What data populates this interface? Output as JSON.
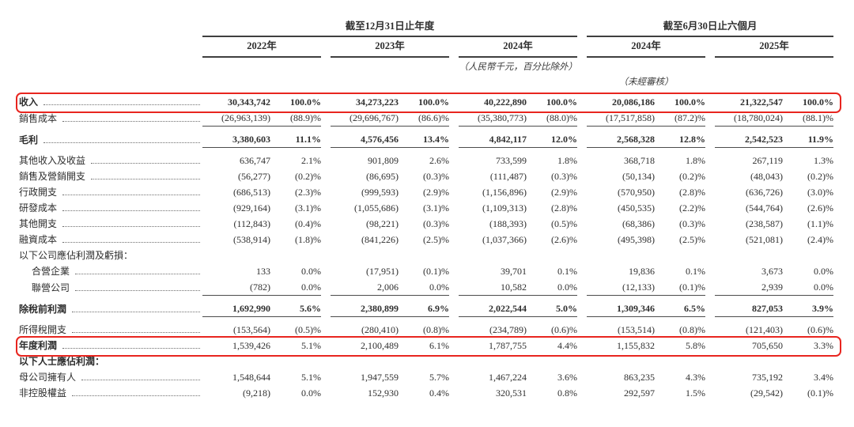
{
  "document": {
    "unit_note": "（人民幣千元，百分比除外）",
    "unaudited_note": "（未經審核）"
  },
  "colors": {
    "highlight_box": "#e8251f",
    "rule_line": "#3f3f3f"
  },
  "table": {
    "group_headers": [
      {
        "label": "截至12月31日止年度"
      },
      {
        "label": "截至6月30日止六個月"
      }
    ],
    "year_headers": [
      "2022年",
      "2023年",
      "2024年",
      "2024年",
      "2025年"
    ],
    "rows": [
      {
        "label": "收入",
        "leader": true,
        "bold": true,
        "value_bold": true,
        "indent": false,
        "highlight": true,
        "gap_above": false,
        "rule_below": false,
        "cells": [
          "30,343,742",
          "100.0%",
          "34,273,223",
          "100.0%",
          "40,222,890",
          "100.0%",
          "20,086,186",
          "100.0%",
          "21,322,547",
          "100.0%"
        ]
      },
      {
        "label": "銷售成本",
        "leader": true,
        "bold": false,
        "value_bold": false,
        "indent": false,
        "highlight": false,
        "gap_above": false,
        "rule_below": true,
        "cells": [
          "(26,963,139)",
          "(88.9)%",
          "(29,696,767)",
          "(86.6)%",
          "(35,380,773)",
          "(88.0)%",
          "(17,517,858)",
          "(87.2)%",
          "(18,780,024)",
          "(88.1)%"
        ]
      },
      {
        "label": "毛利",
        "leader": true,
        "bold": true,
        "value_bold": true,
        "indent": false,
        "highlight": false,
        "gap_above": true,
        "rule_below": true,
        "cells": [
          "3,380,603",
          "11.1%",
          "4,576,456",
          "13.4%",
          "4,842,117",
          "12.0%",
          "2,568,328",
          "12.8%",
          "2,542,523",
          "11.9%"
        ]
      },
      {
        "label": "其他收入及收益",
        "leader": true,
        "bold": false,
        "value_bold": false,
        "indent": false,
        "highlight": false,
        "gap_above": true,
        "rule_below": false,
        "cells": [
          "636,747",
          "2.1%",
          "901,809",
          "2.6%",
          "733,599",
          "1.8%",
          "368,718",
          "1.8%",
          "267,119",
          "1.3%"
        ]
      },
      {
        "label": "銷售及營銷開支",
        "leader": true,
        "bold": false,
        "value_bold": false,
        "indent": false,
        "highlight": false,
        "gap_above": false,
        "rule_below": false,
        "cells": [
          "(56,277)",
          "(0.2)%",
          "(86,695)",
          "(0.3)%",
          "(111,487)",
          "(0.3)%",
          "(50,134)",
          "(0.2)%",
          "(48,043)",
          "(0.2)%"
        ]
      },
      {
        "label": "行政開支",
        "leader": true,
        "bold": false,
        "value_bold": false,
        "indent": false,
        "highlight": false,
        "gap_above": false,
        "rule_below": false,
        "cells": [
          "(686,513)",
          "(2.3)%",
          "(999,593)",
          "(2.9)%",
          "(1,156,896)",
          "(2.9)%",
          "(570,950)",
          "(2.8)%",
          "(636,726)",
          "(3.0)%"
        ]
      },
      {
        "label": "研發成本",
        "leader": true,
        "bold": false,
        "value_bold": false,
        "indent": false,
        "highlight": false,
        "gap_above": false,
        "rule_below": false,
        "cells": [
          "(929,164)",
          "(3.1)%",
          "(1,055,686)",
          "(3.1)%",
          "(1,109,313)",
          "(2.8)%",
          "(450,535)",
          "(2.2)%",
          "(544,764)",
          "(2.6)%"
        ]
      },
      {
        "label": "其他開支",
        "leader": true,
        "bold": false,
        "value_bold": false,
        "indent": false,
        "highlight": false,
        "gap_above": false,
        "rule_below": false,
        "cells": [
          "(112,843)",
          "(0.4)%",
          "(98,221)",
          "(0.3)%",
          "(188,393)",
          "(0.5)%",
          "(68,386)",
          "(0.3)%",
          "(238,587)",
          "(1.1)%"
        ]
      },
      {
        "label": "融資成本",
        "leader": true,
        "bold": false,
        "value_bold": false,
        "indent": false,
        "highlight": false,
        "gap_above": false,
        "rule_below": false,
        "cells": [
          "(538,914)",
          "(1.8)%",
          "(841,226)",
          "(2.5)%",
          "(1,037,366)",
          "(2.6)%",
          "(495,398)",
          "(2.5)%",
          "(521,081)",
          "(2.4)%"
        ]
      },
      {
        "label": "以下公司應佔利潤及虧損：",
        "leader": false,
        "bold": false,
        "value_bold": false,
        "indent": false,
        "highlight": false,
        "gap_above": false,
        "rule_below": false,
        "cells": []
      },
      {
        "label": "合營企業",
        "leader": true,
        "bold": false,
        "value_bold": false,
        "indent": true,
        "highlight": false,
        "gap_above": false,
        "rule_below": false,
        "cells": [
          "133",
          "0.0%",
          "(17,951)",
          "(0.1)%",
          "39,701",
          "0.1%",
          "19,836",
          "0.1%",
          "3,673",
          "0.0%"
        ]
      },
      {
        "label": "聯營公司",
        "leader": true,
        "bold": false,
        "value_bold": false,
        "indent": true,
        "highlight": false,
        "gap_above": false,
        "rule_below": true,
        "cells": [
          "(782)",
          "0.0%",
          "2,006",
          "0.0%",
          "10,582",
          "0.0%",
          "(12,133)",
          "(0.1)%",
          "2,939",
          "0.0%"
        ]
      },
      {
        "label": "除稅前利潤",
        "leader": true,
        "bold": true,
        "value_bold": true,
        "indent": false,
        "highlight": false,
        "gap_above": true,
        "rule_below": true,
        "cells": [
          "1,692,990",
          "5.6%",
          "2,380,899",
          "6.9%",
          "2,022,544",
          "5.0%",
          "1,309,346",
          "6.5%",
          "827,053",
          "3.9%"
        ]
      },
      {
        "label": "所得稅開支",
        "leader": true,
        "bold": false,
        "value_bold": false,
        "indent": false,
        "highlight": false,
        "gap_above": true,
        "rule_below": false,
        "cells": [
          "(153,564)",
          "(0.5)%",
          "(280,410)",
          "(0.8)%",
          "(234,789)",
          "(0.6)%",
          "(153,514)",
          "(0.8)%",
          "(121,403)",
          "(0.6)%"
        ]
      },
      {
        "label": "年度利潤",
        "leader": true,
        "bold": true,
        "value_bold": false,
        "indent": false,
        "highlight": true,
        "gap_above": false,
        "rule_below": false,
        "cells": [
          "1,539,426",
          "5.1%",
          "2,100,489",
          "6.1%",
          "1,787,755",
          "4.4%",
          "1,155,832",
          "5.8%",
          "705,650",
          "3.3%"
        ]
      },
      {
        "label": "以下人士應佔利潤：",
        "leader": false,
        "bold": true,
        "value_bold": false,
        "indent": false,
        "highlight": false,
        "gap_above": false,
        "rule_below": false,
        "cells": []
      },
      {
        "label": "母公司擁有人",
        "leader": true,
        "bold": false,
        "value_bold": false,
        "indent": false,
        "highlight": false,
        "gap_above": false,
        "rule_below": false,
        "cells": [
          "1,548,644",
          "5.1%",
          "1,947,559",
          "5.7%",
          "1,467,224",
          "3.6%",
          "863,235",
          "4.3%",
          "735,192",
          "3.4%"
        ]
      },
      {
        "label": "非控股權益",
        "leader": true,
        "bold": false,
        "value_bold": false,
        "indent": false,
        "highlight": false,
        "gap_above": false,
        "rule_below": false,
        "cells": [
          "(9,218)",
          "0.0%",
          "152,930",
          "0.4%",
          "320,531",
          "0.8%",
          "292,597",
          "1.5%",
          "(29,542)",
          "(0.1)%"
        ]
      }
    ]
  }
}
